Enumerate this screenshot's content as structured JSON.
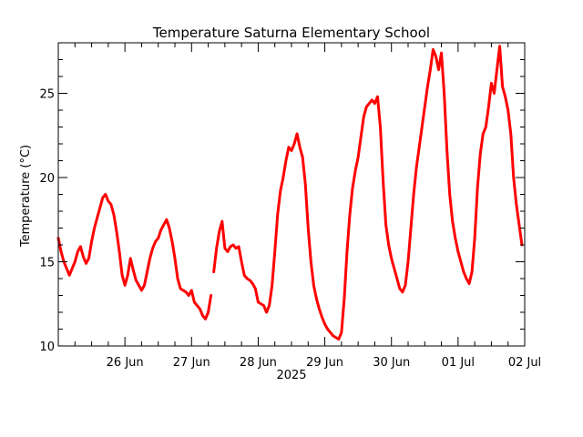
{
  "chart_data": {
    "type": "line",
    "title": "Temperature Saturna Elementary School",
    "ylabel": "Temperature (°C)",
    "xlabel": "2025",
    "ylim": [
      10,
      28
    ],
    "xlim": [
      "2025-06-25T00:00",
      "2025-07-02T00:00"
    ],
    "yticks": [
      10,
      15,
      20,
      25
    ],
    "xticks": [
      {
        "label": "26 Jun",
        "x": "2025-06-26T00:00"
      },
      {
        "label": "27 Jun",
        "x": "2025-06-27T00:00"
      },
      {
        "label": "28 Jun",
        "x": "2025-06-28T00:00"
      },
      {
        "label": "29 Jun",
        "x": "2025-06-29T00:00"
      },
      {
        "label": "30 Jun",
        "x": "2025-06-30T00:00"
      },
      {
        "label": "01 Jul",
        "x": "2025-07-01T00:00"
      },
      {
        "label": "02 Jul",
        "x": "2025-07-02T00:00"
      }
    ],
    "grid": false,
    "color": "#ff0000",
    "series": [
      {
        "segments": [
          [
            [
              "2025-06-25T00:00",
              16.4
            ],
            [
              "2025-06-25T01:00",
              15.6
            ],
            [
              "2025-06-25T02:00",
              15.0
            ],
            [
              "2025-06-25T03:00",
              14.6
            ],
            [
              "2025-06-25T04:00",
              14.2
            ],
            [
              "2025-06-25T05:00",
              14.6
            ],
            [
              "2025-06-25T06:00",
              15.0
            ],
            [
              "2025-06-25T07:00",
              15.6
            ],
            [
              "2025-06-25T08:00",
              15.9
            ],
            [
              "2025-06-25T09:00",
              15.3
            ],
            [
              "2025-06-25T10:00",
              14.9
            ],
            [
              "2025-06-25T11:00",
              15.2
            ],
            [
              "2025-06-25T12:00",
              16.2
            ],
            [
              "2025-06-25T13:00",
              17.0
            ],
            [
              "2025-06-25T14:00",
              17.6
            ],
            [
              "2025-06-25T15:00",
              18.2
            ],
            [
              "2025-06-25T16:00",
              18.8
            ],
            [
              "2025-06-25T17:00",
              19.0
            ],
            [
              "2025-06-25T18:00",
              18.6
            ],
            [
              "2025-06-25T19:00",
              18.4
            ],
            [
              "2025-06-25T20:00",
              17.8
            ],
            [
              "2025-06-25T21:00",
              16.8
            ],
            [
              "2025-06-25T22:00",
              15.6
            ],
            [
              "2025-06-25T23:00",
              14.2
            ],
            [
              "2025-06-26T00:00",
              13.6
            ],
            [
              "2025-06-26T01:00",
              14.2
            ],
            [
              "2025-06-26T02:00",
              15.2
            ],
            [
              "2025-06-26T03:00",
              14.5
            ],
            [
              "2025-06-26T04:00",
              13.9
            ],
            [
              "2025-06-26T05:00",
              13.6
            ],
            [
              "2025-06-26T06:00",
              13.3
            ],
            [
              "2025-06-26T07:00",
              13.6
            ],
            [
              "2025-06-26T08:00",
              14.4
            ],
            [
              "2025-06-26T09:00",
              15.2
            ],
            [
              "2025-06-26T10:00",
              15.8
            ],
            [
              "2025-06-26T11:00",
              16.2
            ],
            [
              "2025-06-26T12:00",
              16.4
            ],
            [
              "2025-06-26T13:00",
              16.9
            ],
            [
              "2025-06-26T14:00",
              17.2
            ],
            [
              "2025-06-26T15:00",
              17.5
            ],
            [
              "2025-06-26T16:00",
              17.0
            ],
            [
              "2025-06-26T17:00",
              16.2
            ],
            [
              "2025-06-26T18:00",
              15.2
            ],
            [
              "2025-06-26T19:00",
              14.0
            ],
            [
              "2025-06-26T20:00",
              13.4
            ],
            [
              "2025-06-26T21:00",
              13.3
            ],
            [
              "2025-06-26T22:00",
              13.2
            ],
            [
              "2025-06-26T23:00",
              13.0
            ],
            [
              "2025-06-27T00:00",
              13.3
            ],
            [
              "2025-06-27T01:00",
              12.6
            ],
            [
              "2025-06-27T02:00",
              12.4
            ],
            [
              "2025-06-27T03:00",
              12.2
            ],
            [
              "2025-06-27T04:00",
              11.8
            ],
            [
              "2025-06-27T05:00",
              11.6
            ],
            [
              "2025-06-27T06:00",
              12.0
            ],
            [
              "2025-06-27T07:00",
              13.0
            ]
          ],
          [
            [
              "2025-06-27T08:00",
              14.4
            ],
            [
              "2025-06-27T09:00",
              15.8
            ],
            [
              "2025-06-27T10:00",
              16.8
            ],
            [
              "2025-06-27T11:00",
              17.4
            ],
            [
              "2025-06-27T12:00",
              15.8
            ],
            [
              "2025-06-27T13:00",
              15.6
            ],
            [
              "2025-06-27T14:00",
              15.9
            ],
            [
              "2025-06-27T15:00",
              16.0
            ],
            [
              "2025-06-27T16:00",
              15.8
            ],
            [
              "2025-06-27T17:00",
              15.9
            ],
            [
              "2025-06-27T18:00",
              15.0
            ],
            [
              "2025-06-27T19:00",
              14.2
            ],
            [
              "2025-06-27T20:00",
              14.0
            ],
            [
              "2025-06-27T21:00",
              13.9
            ],
            [
              "2025-06-27T22:00",
              13.7
            ],
            [
              "2025-06-27T23:00",
              13.4
            ],
            [
              "2025-06-28T00:00",
              12.6
            ],
            [
              "2025-06-28T01:00",
              12.5
            ],
            [
              "2025-06-28T02:00",
              12.4
            ],
            [
              "2025-06-28T03:00",
              12.0
            ],
            [
              "2025-06-28T04:00",
              12.4
            ],
            [
              "2025-06-28T05:00",
              13.6
            ],
            [
              "2025-06-28T06:00",
              15.6
            ],
            [
              "2025-06-28T07:00",
              17.8
            ],
            [
              "2025-06-28T08:00",
              19.2
            ],
            [
              "2025-06-28T09:00",
              20.0
            ],
            [
              "2025-06-28T10:00",
              21.0
            ],
            [
              "2025-06-28T11:00",
              21.8
            ],
            [
              "2025-06-28T12:00",
              21.6
            ],
            [
              "2025-06-28T13:00",
              22.0
            ],
            [
              "2025-06-28T14:00",
              22.6
            ],
            [
              "2025-06-28T15:00",
              21.8
            ],
            [
              "2025-06-28T16:00",
              21.2
            ],
            [
              "2025-06-28T17:00",
              19.6
            ],
            [
              "2025-06-28T18:00",
              17.0
            ],
            [
              "2025-06-28T19:00",
              15.0
            ],
            [
              "2025-06-28T20:00",
              13.6
            ],
            [
              "2025-06-28T21:00",
              12.8
            ],
            [
              "2025-06-28T22:00",
              12.2
            ],
            [
              "2025-06-28T23:00",
              11.7
            ],
            [
              "2025-06-29T00:00",
              11.3
            ],
            [
              "2025-06-29T01:00",
              11.0
            ],
            [
              "2025-06-29T02:00",
              10.8
            ],
            [
              "2025-06-29T03:00",
              10.6
            ],
            [
              "2025-06-29T04:00",
              10.5
            ],
            [
              "2025-06-29T05:00",
              10.4
            ],
            [
              "2025-06-29T06:00",
              10.8
            ],
            [
              "2025-06-29T07:00",
              12.8
            ],
            [
              "2025-06-29T08:00",
              15.6
            ],
            [
              "2025-06-29T09:00",
              17.8
            ],
            [
              "2025-06-29T10:00",
              19.4
            ],
            [
              "2025-06-29T11:00",
              20.4
            ],
            [
              "2025-06-29T12:00",
              21.2
            ],
            [
              "2025-06-29T13:00",
              22.4
            ],
            [
              "2025-06-29T14:00",
              23.6
            ],
            [
              "2025-06-29T15:00",
              24.2
            ],
            [
              "2025-06-29T16:00",
              24.4
            ],
            [
              "2025-06-29T17:00",
              24.6
            ],
            [
              "2025-06-29T18:00",
              24.4
            ],
            [
              "2025-06-29T19:00",
              24.8
            ],
            [
              "2025-06-29T20:00",
              23.0
            ],
            [
              "2025-06-29T21:00",
              19.8
            ],
            [
              "2025-06-29T22:00",
              17.2
            ],
            [
              "2025-06-29T23:00",
              16.0
            ],
            [
              "2025-06-30T00:00",
              15.2
            ],
            [
              "2025-06-30T01:00",
              14.6
            ],
            [
              "2025-06-30T02:00",
              14.0
            ],
            [
              "2025-06-30T03:00",
              13.4
            ],
            [
              "2025-06-30T04:00",
              13.2
            ],
            [
              "2025-06-30T05:00",
              13.6
            ],
            [
              "2025-06-30T06:00",
              15.0
            ],
            [
              "2025-06-30T07:00",
              17.0
            ],
            [
              "2025-06-30T08:00",
              19.0
            ],
            [
              "2025-06-30T09:00",
              20.6
            ],
            [
              "2025-06-30T10:00",
              21.8
            ],
            [
              "2025-06-30T11:00",
              23.0
            ],
            [
              "2025-06-30T12:00",
              24.2
            ],
            [
              "2025-06-30T13:00",
              25.4
            ],
            [
              "2025-06-30T14:00",
              26.4
            ],
            [
              "2025-06-30T15:00",
              27.6
            ],
            [
              "2025-06-30T16:00",
              27.2
            ],
            [
              "2025-06-30T17:00",
              26.4
            ],
            [
              "2025-06-30T18:00",
              27.4
            ],
            [
              "2025-06-30T19:00",
              25.0
            ],
            [
              "2025-06-30T20:00",
              21.6
            ],
            [
              "2025-06-30T21:00",
              19.0
            ],
            [
              "2025-06-30T22:00",
              17.4
            ],
            [
              "2025-06-30T23:00",
              16.4
            ],
            [
              "2025-07-01T00:00",
              15.6
            ],
            [
              "2025-07-01T01:00",
              15.0
            ],
            [
              "2025-07-01T02:00",
              14.4
            ],
            [
              "2025-07-01T03:00",
              14.0
            ],
            [
              "2025-07-01T04:00",
              13.7
            ],
            [
              "2025-07-01T05:00",
              14.4
            ],
            [
              "2025-07-01T06:00",
              16.4
            ],
            [
              "2025-07-01T07:00",
              19.4
            ],
            [
              "2025-07-01T08:00",
              21.4
            ],
            [
              "2025-07-01T09:00",
              22.6
            ],
            [
              "2025-07-01T10:00",
              23.0
            ],
            [
              "2025-07-01T11:00",
              24.2
            ],
            [
              "2025-07-01T12:00",
              25.6
            ],
            [
              "2025-07-01T13:00",
              25.0
            ],
            [
              "2025-07-01T14:00",
              26.4
            ],
            [
              "2025-07-01T15:00",
              27.8
            ],
            [
              "2025-07-01T16:00",
              25.4
            ],
            [
              "2025-07-01T17:00",
              24.8
            ],
            [
              "2025-07-01T18:00",
              24.0
            ],
            [
              "2025-07-01T19:00",
              22.6
            ],
            [
              "2025-07-01T20:00",
              20.0
            ],
            [
              "2025-07-01T21:00",
              18.4
            ],
            [
              "2025-07-01T22:00",
              17.2
            ],
            [
              "2025-07-01T23:00",
              16.0
            ]
          ]
        ]
      }
    ]
  }
}
